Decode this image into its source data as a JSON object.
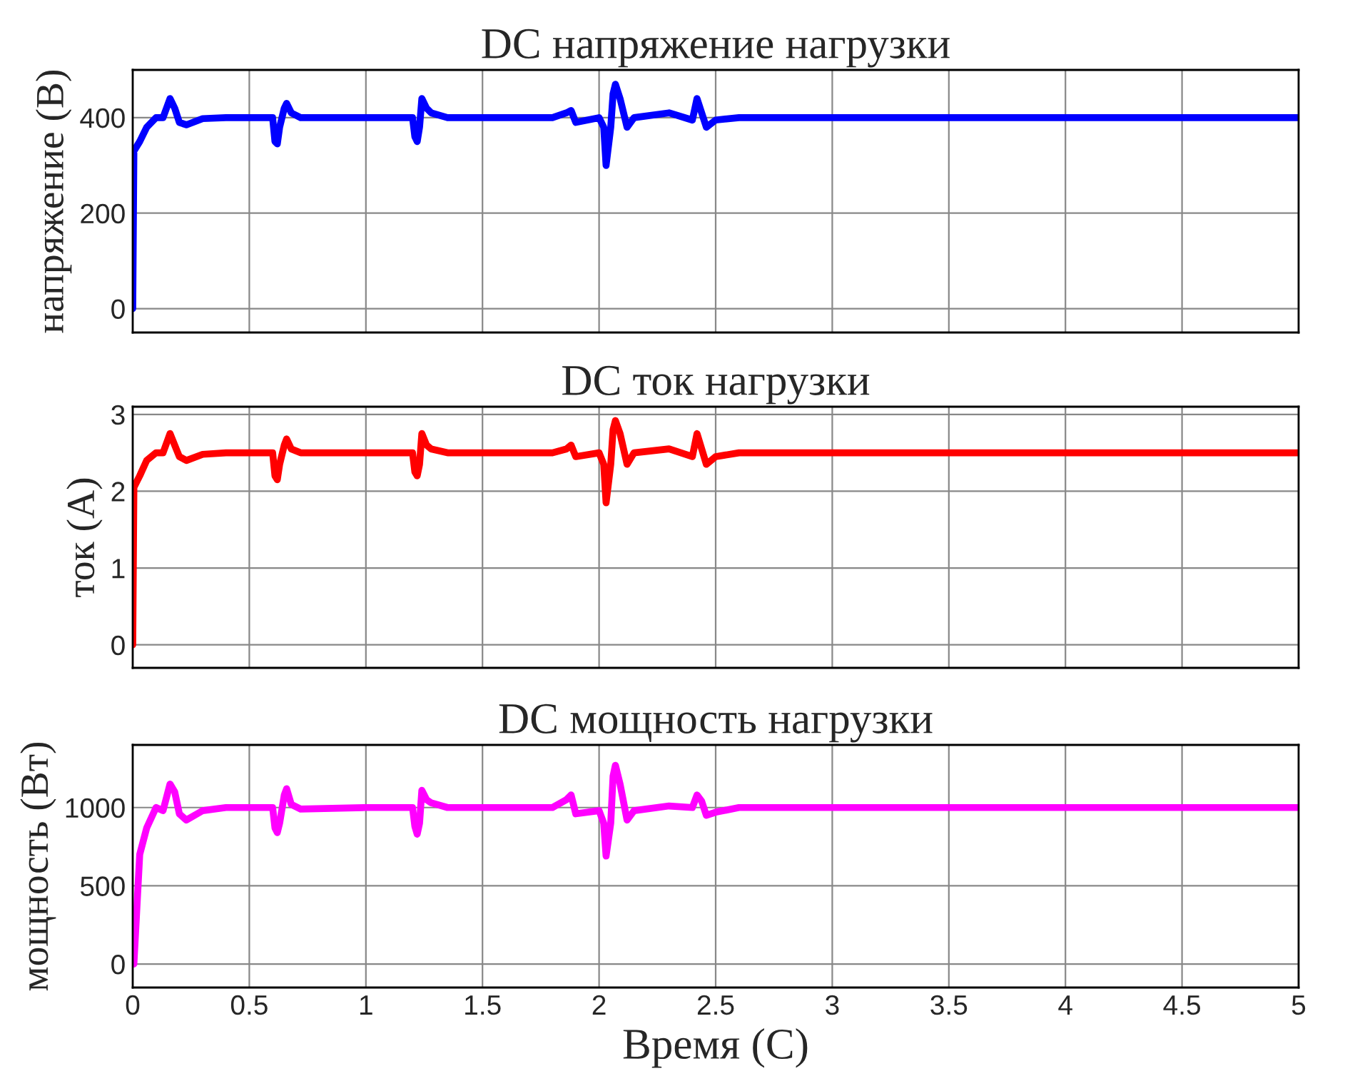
{
  "chart_data": [
    {
      "type": "line",
      "title": "DC напряжение нагрузки",
      "ylabel": "напряжение (В)",
      "tick_labels": "y",
      "grid": true,
      "xlim": [
        0,
        5
      ],
      "xticks": [
        0,
        0.5,
        1,
        1.5,
        2,
        2.5,
        3,
        3.5,
        4,
        4.5,
        5
      ],
      "ylim": [
        -50,
        500
      ],
      "yticks": [
        0,
        200,
        400
      ],
      "x": [
        0,
        0.005,
        0.03,
        0.06,
        0.1,
        0.13,
        0.16,
        0.18,
        0.2,
        0.23,
        0.3,
        0.4,
        0.6,
        0.61,
        0.62,
        0.63,
        0.65,
        0.66,
        0.68,
        0.72,
        1.0,
        1.2,
        1.21,
        1.22,
        1.23,
        1.24,
        1.26,
        1.28,
        1.35,
        1.8,
        1.86,
        1.88,
        1.9,
        2.0,
        2.02,
        2.03,
        2.05,
        2.06,
        2.07,
        2.09,
        2.12,
        2.15,
        2.3,
        2.4,
        2.42,
        2.44,
        2.46,
        2.5,
        2.6,
        5
      ],
      "series": [
        {
          "color": "#0000ff",
          "values": [
            0,
            330,
            350,
            380,
            400,
            400,
            440,
            420,
            390,
            385,
            398,
            400,
            400,
            350,
            345,
            380,
            420,
            430,
            410,
            400,
            400,
            400,
            360,
            350,
            380,
            440,
            420,
            410,
            400,
            400,
            410,
            415,
            390,
            400,
            380,
            300,
            380,
            450,
            470,
            440,
            380,
            400,
            410,
            395,
            440,
            410,
            380,
            395,
            400,
            400
          ]
        }
      ]
    },
    {
      "type": "line",
      "title": "DC ток нагрузки",
      "ylabel": "ток (А)",
      "tick_labels": "y",
      "grid": true,
      "xlim": [
        0,
        5
      ],
      "xticks": [
        0,
        0.5,
        1,
        1.5,
        2,
        2.5,
        3,
        3.5,
        4,
        4.5,
        5
      ],
      "ylim": [
        -0.3,
        3.1
      ],
      "yticks": [
        0,
        1,
        2,
        3
      ],
      "x": [
        0,
        0.005,
        0.03,
        0.06,
        0.1,
        0.13,
        0.16,
        0.18,
        0.2,
        0.23,
        0.3,
        0.4,
        0.6,
        0.61,
        0.62,
        0.63,
        0.65,
        0.66,
        0.68,
        0.72,
        1.0,
        1.2,
        1.21,
        1.22,
        1.23,
        1.24,
        1.26,
        1.28,
        1.35,
        1.8,
        1.86,
        1.88,
        1.9,
        2.0,
        2.02,
        2.03,
        2.05,
        2.06,
        2.07,
        2.09,
        2.12,
        2.15,
        2.3,
        2.4,
        2.42,
        2.44,
        2.46,
        2.5,
        2.6,
        5
      ],
      "series": [
        {
          "color": "#ff0000",
          "values": [
            0,
            2.05,
            2.2,
            2.4,
            2.5,
            2.5,
            2.75,
            2.6,
            2.45,
            2.4,
            2.48,
            2.5,
            2.5,
            2.2,
            2.15,
            2.35,
            2.6,
            2.68,
            2.55,
            2.5,
            2.5,
            2.5,
            2.25,
            2.2,
            2.35,
            2.75,
            2.6,
            2.55,
            2.5,
            2.5,
            2.55,
            2.6,
            2.45,
            2.5,
            2.35,
            1.85,
            2.35,
            2.8,
            2.92,
            2.75,
            2.35,
            2.5,
            2.55,
            2.45,
            2.75,
            2.55,
            2.35,
            2.45,
            2.5,
            2.5
          ]
        }
      ]
    },
    {
      "type": "line",
      "title": "DC мощность нагрузки",
      "ylabel": "мощность (Вт)",
      "xlabel": "Время (С)",
      "grid": true,
      "xlim": [
        0,
        5
      ],
      "xticks": [
        0,
        0.5,
        1,
        1.5,
        2,
        2.5,
        3,
        3.5,
        4,
        4.5,
        5
      ],
      "ylim": [
        -150,
        1400
      ],
      "yticks": [
        0,
        500,
        1000
      ],
      "x": [
        0,
        0.005,
        0.03,
        0.06,
        0.1,
        0.13,
        0.16,
        0.18,
        0.2,
        0.23,
        0.3,
        0.4,
        0.6,
        0.61,
        0.62,
        0.63,
        0.65,
        0.66,
        0.68,
        0.72,
        1.0,
        1.2,
        1.21,
        1.22,
        1.23,
        1.24,
        1.26,
        1.28,
        1.35,
        1.8,
        1.86,
        1.88,
        1.9,
        2.0,
        2.02,
        2.03,
        2.05,
        2.06,
        2.07,
        2.09,
        2.12,
        2.15,
        2.3,
        2.4,
        2.42,
        2.44,
        2.46,
        2.5,
        2.6,
        5
      ],
      "series": [
        {
          "color": "#ff00ff",
          "values": [
            0,
            0,
            700,
            870,
            1000,
            980,
            1150,
            1100,
            960,
            920,
            980,
            1000,
            1000,
            870,
            840,
            900,
            1080,
            1120,
            1020,
            990,
            1000,
            1000,
            880,
            830,
            900,
            1110,
            1050,
            1030,
            1000,
            1000,
            1050,
            1080,
            960,
            980,
            900,
            690,
            900,
            1200,
            1270,
            1150,
            920,
            980,
            1010,
            1000,
            1080,
            1040,
            950,
            970,
            1000,
            1000
          ]
        }
      ]
    }
  ]
}
